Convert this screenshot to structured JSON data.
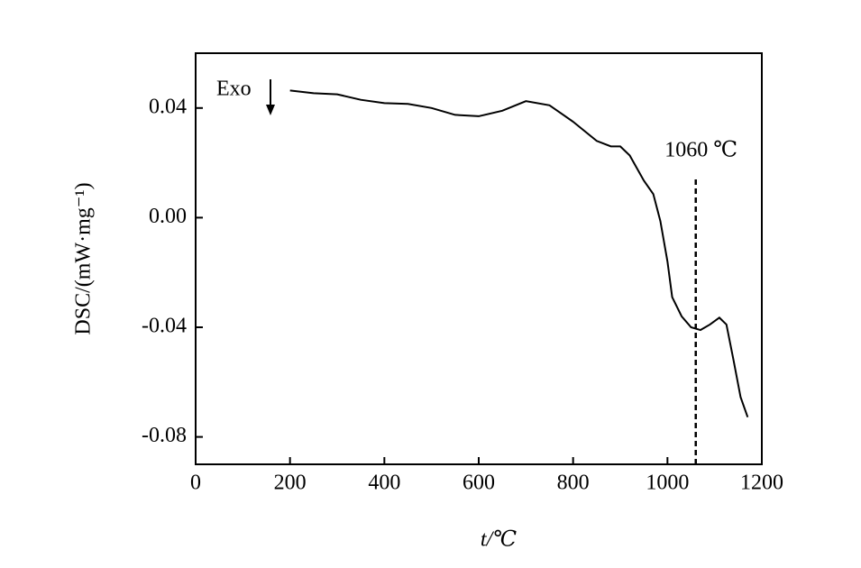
{
  "chart_data": {
    "type": "line",
    "xlabel": "t/℃",
    "ylabel": "DSC/(mW·mg⁻¹)",
    "x": [
      200,
      250,
      300,
      350,
      400,
      450,
      500,
      550,
      600,
      650,
      700,
      750,
      800,
      850,
      880,
      900,
      920,
      950,
      970,
      985,
      1000,
      1010,
      1030,
      1050,
      1070,
      1090,
      1110,
      1125,
      1140,
      1155,
      1170
    ],
    "series": [
      {
        "color": "#000000",
        "values": [
          0.0464,
          0.0454,
          0.045,
          0.043,
          0.0418,
          0.0415,
          0.04,
          0.0375,
          0.037,
          0.039,
          0.0425,
          0.041,
          0.035,
          0.028,
          0.026,
          0.026,
          0.0227,
          0.0135,
          0.0086,
          -0.0013,
          -0.016,
          -0.029,
          -0.036,
          -0.04,
          -0.041,
          -0.039,
          -0.0365,
          -0.039,
          -0.052,
          -0.0655,
          -0.0728
        ]
      }
    ],
    "xlim": [
      0,
      1200
    ],
    "xticks": [
      0,
      200,
      400,
      600,
      800,
      1000,
      1200
    ],
    "ylim": [
      -0.09,
      0.06
    ],
    "yticks": [
      -0.08,
      -0.04,
      {
        "value": 0,
        "label": "0.00"
      },
      0.04
    ],
    "annotations": [
      {
        "text": "Exo"
      },
      {
        "text": "1060 ℃",
        "x": 1060
      }
    ]
  }
}
